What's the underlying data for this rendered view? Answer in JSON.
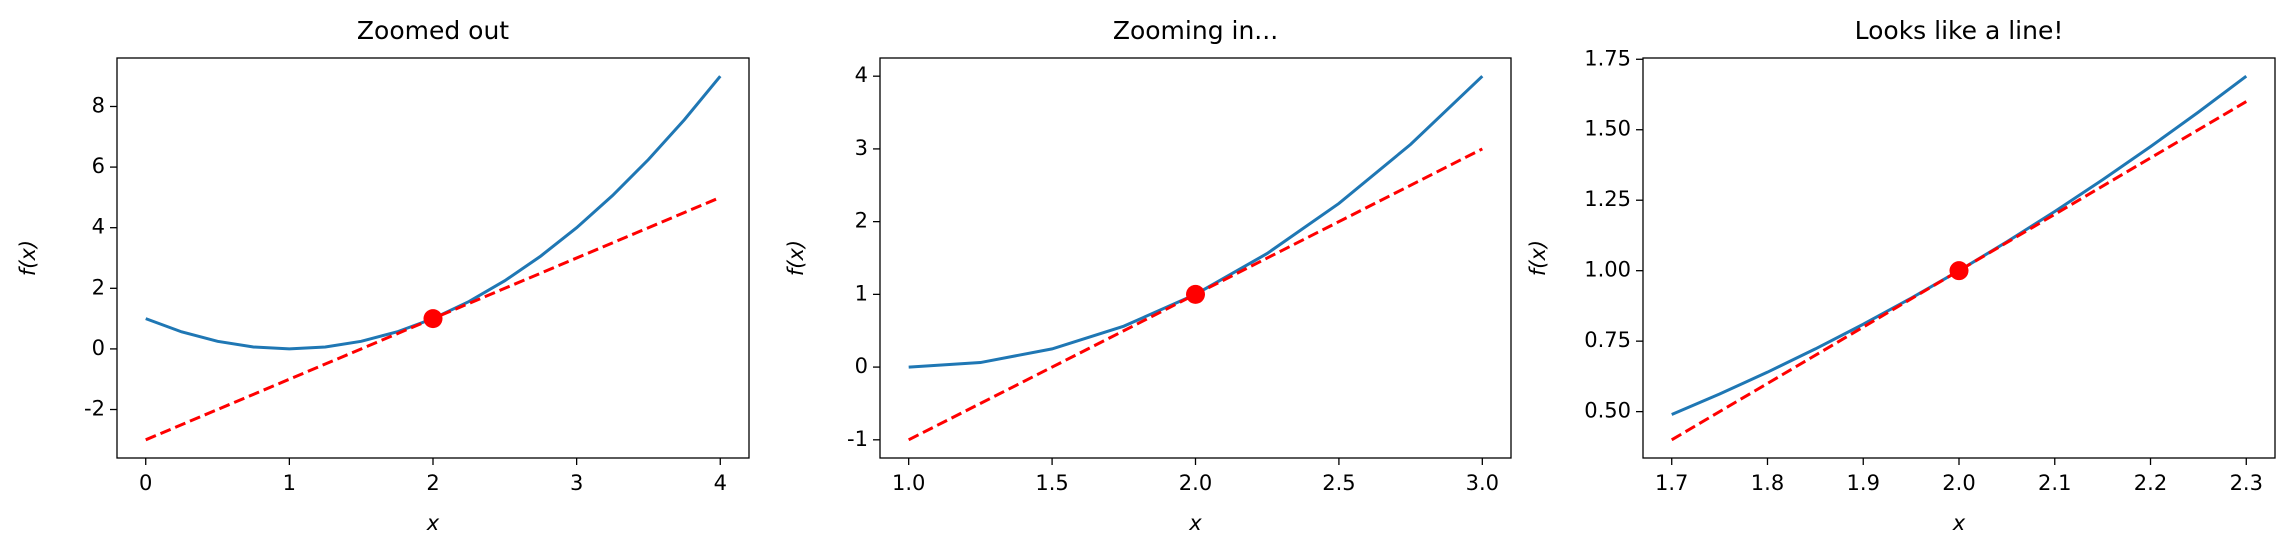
{
  "chart_data": [
    {
      "type": "line",
      "title": "Zoomed out",
      "xlabel": "x",
      "ylabel": "f(x)",
      "xlim": [
        -0.2,
        4.2
      ],
      "ylim": [
        -3.6,
        9.6
      ],
      "xticks": [
        0,
        1,
        2,
        3,
        4
      ],
      "yticks": [
        -2,
        0,
        2,
        4,
        6,
        8
      ],
      "series": [
        {
          "color": "#1f77b4",
          "linestyle": "solid",
          "x": [
            0,
            0.25,
            0.5,
            0.75,
            1,
            1.25,
            1.5,
            1.75,
            2,
            2.25,
            2.5,
            2.75,
            3,
            3.25,
            3.5,
            3.75,
            4
          ],
          "values": [
            1,
            0.5625,
            0.25,
            0.0625,
            0,
            0.0625,
            0.25,
            0.5625,
            1,
            1.5625,
            2.25,
            3.0625,
            4,
            5.0625,
            6.25,
            7.5625,
            9
          ]
        },
        {
          "color": "#ff0000",
          "linestyle": "dashed",
          "x": [
            0,
            4
          ],
          "values": [
            -3,
            5
          ]
        },
        {
          "color": "#ff0000",
          "linestyle": "none",
          "marker": "circle",
          "x": [
            2
          ],
          "values": [
            1
          ]
        }
      ]
    },
    {
      "type": "line",
      "title": "Zooming in...",
      "xlabel": "x",
      "ylabel": "f(x)",
      "xlim": [
        0.9,
        3.1
      ],
      "ylim": [
        -1.25,
        4.25
      ],
      "xticks": [
        {
          "value": 1,
          "label": "1.0"
        },
        1.5,
        {
          "value": 2,
          "label": "2.0"
        },
        2.5,
        {
          "value": 3,
          "label": "3.0"
        }
      ],
      "yticks": [
        -1,
        0,
        1,
        2,
        3,
        4
      ],
      "series": [
        {
          "color": "#1f77b4",
          "linestyle": "solid",
          "x": [
            1,
            1.25,
            1.5,
            1.75,
            2,
            2.25,
            2.5,
            2.75,
            3
          ],
          "values": [
            0,
            0.0625,
            0.25,
            0.5625,
            1,
            1.5625,
            2.25,
            3.0625,
            4
          ]
        },
        {
          "color": "#ff0000",
          "linestyle": "dashed",
          "x": [
            1,
            3
          ],
          "values": [
            -1,
            3
          ]
        },
        {
          "color": "#ff0000",
          "linestyle": "none",
          "marker": "circle",
          "x": [
            2
          ],
          "values": [
            1
          ]
        }
      ]
    },
    {
      "type": "line",
      "title": "Looks like a line!",
      "xlabel": "x",
      "ylabel": "f(x)",
      "xlim": [
        1.67,
        2.33
      ],
      "ylim": [
        0.3355,
        1.7545
      ],
      "xticks": [
        1.7,
        1.8,
        1.9,
        {
          "value": 2,
          "label": "2.0"
        },
        2.1,
        2.2,
        2.3
      ],
      "yticks": [
        {
          "value": 0.5,
          "label": "0.50"
        },
        0.75,
        {
          "value": 1,
          "label": "1.00"
        },
        1.25,
        {
          "value": 1.5,
          "label": "1.50"
        },
        1.75
      ],
      "series": [
        {
          "color": "#1f77b4",
          "linestyle": "solid",
          "x": [
            1.7,
            1.75,
            1.8,
            1.85,
            1.9,
            1.95,
            2,
            2.05,
            2.1,
            2.15,
            2.2,
            2.25,
            2.3
          ],
          "values": [
            0.49,
            0.5625,
            0.64,
            0.7225,
            0.81,
            0.9025,
            1,
            1.1025,
            1.21,
            1.3225,
            1.44,
            1.5625,
            1.69
          ]
        },
        {
          "color": "#ff0000",
          "linestyle": "dashed",
          "x": [
            1.7,
            2.3
          ],
          "values": [
            0.4,
            1.6
          ]
        },
        {
          "color": "#ff0000",
          "linestyle": "none",
          "marker": "circle",
          "x": [
            2
          ],
          "values": [
            1
          ]
        }
      ]
    }
  ]
}
